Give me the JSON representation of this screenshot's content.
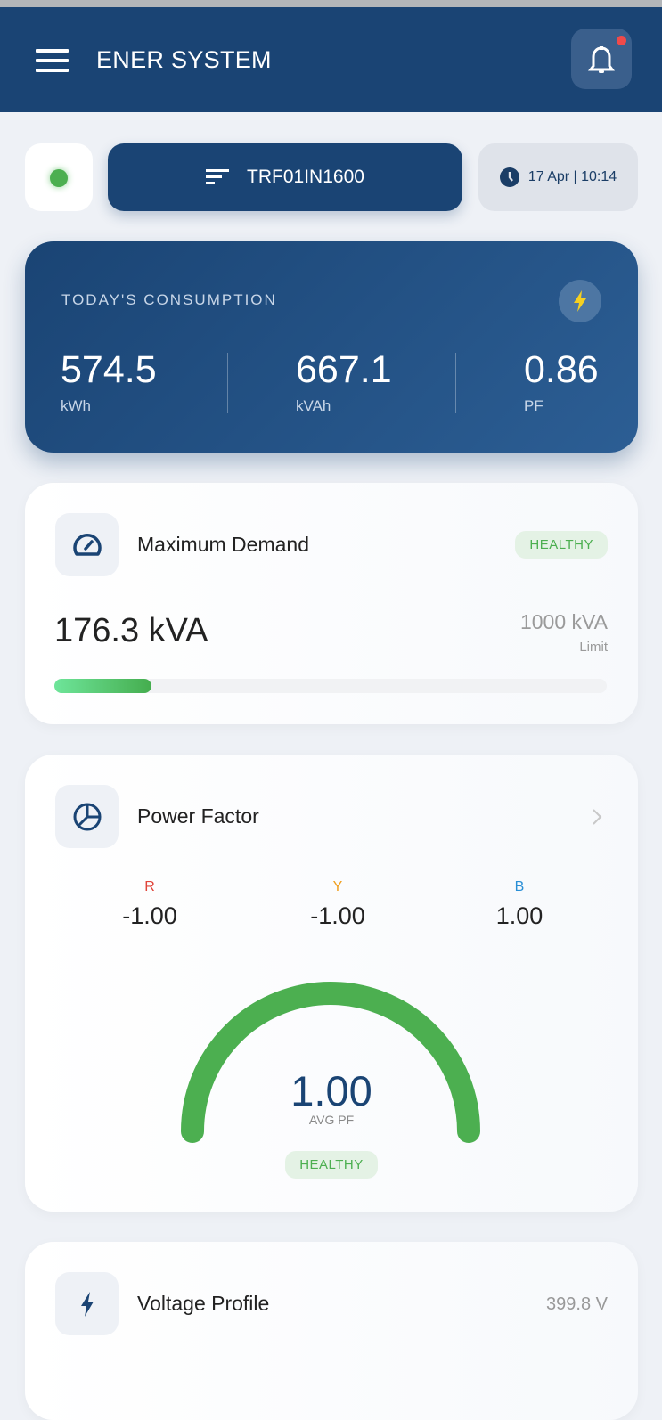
{
  "header": {
    "title": "ENER SYSTEM",
    "notification_dot": true
  },
  "toolbar": {
    "status_color": "#4caf50",
    "meter_id": "TRF01IN1600",
    "datetime": "17 Apr | 10:14"
  },
  "consumption": {
    "label": "TODAY'S CONSUMPTION",
    "stats": [
      {
        "value": "574.5",
        "unit": "kWh"
      },
      {
        "value": "667.1",
        "unit": "kVAh"
      },
      {
        "value": "0.86",
        "unit": "PF"
      }
    ]
  },
  "max_demand": {
    "title": "Maximum Demand",
    "status": "HEALTHY",
    "value": "176.3 kVA",
    "limit": "1000 kVA",
    "limit_label": "Limit",
    "progress_percent": 17.6
  },
  "power_factor": {
    "title": "Power Factor",
    "phases": [
      {
        "name": "R",
        "value": "-1.00",
        "color": "#e0453a"
      },
      {
        "name": "Y",
        "value": "-1.00",
        "color": "#f0a020"
      },
      {
        "name": "B",
        "value": "1.00",
        "color": "#2a8fd6"
      }
    ],
    "avg": "1.00",
    "avg_label": "AVG PF",
    "status": "HEALTHY",
    "gauge_fraction": 1.0
  },
  "voltage": {
    "title": "Voltage Profile",
    "value": "399.8 V"
  }
}
